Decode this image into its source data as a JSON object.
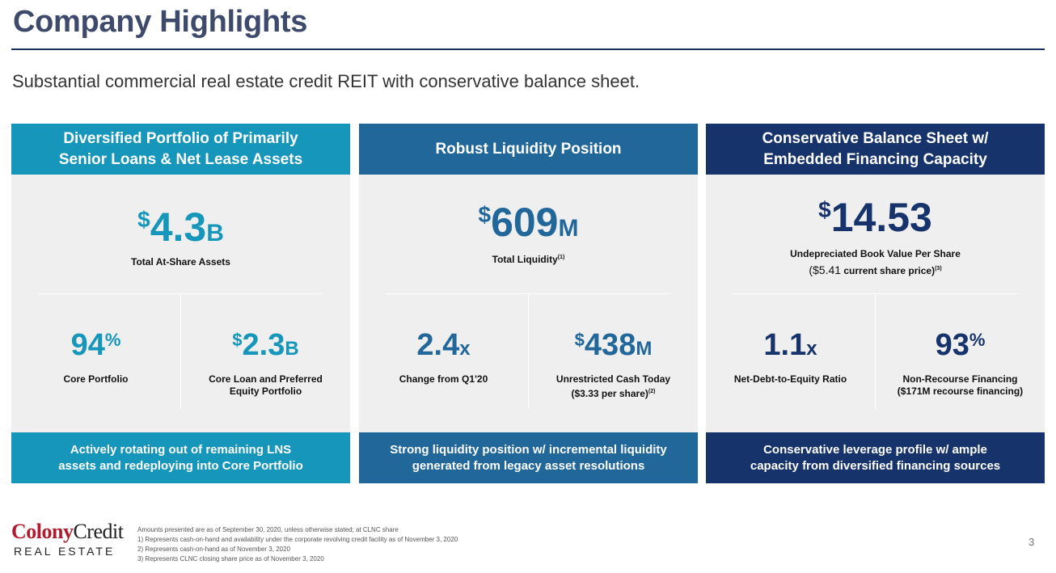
{
  "title": "Company Highlights",
  "subtitle": "Substantial commercial real estate credit REIT with conservative balance sheet.",
  "colors": {
    "teal": "#1596ba",
    "mid_blue": "#21679a",
    "navy": "#16336b",
    "title": "#3d4a6b",
    "body": "#efefef"
  },
  "cards": [
    {
      "header": "Diversified Portfolio of Primarily Senior Loans & Net Lease Assets",
      "main": {
        "prefix": "$",
        "value": "4.3",
        "suffix": "B",
        "label": "Total At-Share Assets"
      },
      "left": {
        "prefix": "",
        "value": "94",
        "suffix": "%",
        "label": "Core Portfolio"
      },
      "right": {
        "prefix": "$",
        "value": "2.3",
        "suffix": "B",
        "label": "Core Loan and Preferred Equity Portfolio"
      },
      "footer": "Actively rotating out of remaining LNS assets and redeploying into Core Portfolio"
    },
    {
      "header": "Robust Liquidity Position",
      "main": {
        "prefix": "$",
        "value": "609",
        "suffix": "M",
        "label": "Total Liquidity",
        "note": "(1)"
      },
      "left": {
        "prefix": "",
        "value": "2.4",
        "suffix": "x",
        "label": "Change from Q1'20"
      },
      "right": {
        "prefix": "$",
        "value": "438",
        "suffix": "M",
        "label": "Unrestricted Cash Today",
        "label2": "($3.33 per share)",
        "note": "(2)"
      },
      "footer": "Strong liquidity position w/ incremental liquidity generated from legacy asset resolutions"
    },
    {
      "header": "Conservative Balance Sheet w/ Embedded Financing Capacity",
      "main": {
        "prefix": "$",
        "value": "14.53",
        "suffix": "",
        "label": "Undepreciated Book Value Per Share",
        "label2_a": "($5.41",
        "label2_b": "current share price)",
        "note": "(3)"
      },
      "left": {
        "prefix": "",
        "value": "1.1",
        "suffix": "x",
        "label": "Net-Debt-to-Equity Ratio"
      },
      "right": {
        "prefix": "",
        "value": "93",
        "suffix": "%",
        "label": "Non-Recourse Financing",
        "label2": "($171M recourse financing)"
      },
      "footer": "Conservative leverage profile w/ ample capacity from diversified financing sources"
    }
  ],
  "logo": {
    "part1": "Colony",
    "part2": "Credit",
    "part3": "REAL ESTATE"
  },
  "footnotes": [
    "Amounts presented are as of September 30, 2020, unless otherwise stated; at CLNC share",
    "1)  Represents cash-on-hand and availability under the corporate revolving credit facility as of November 3, 2020",
    "2)  Represents cash-on-hand as of November 3, 2020",
    "3)  Represents CLNC closing share price as of November 3, 2020"
  ],
  "page_number": "3"
}
